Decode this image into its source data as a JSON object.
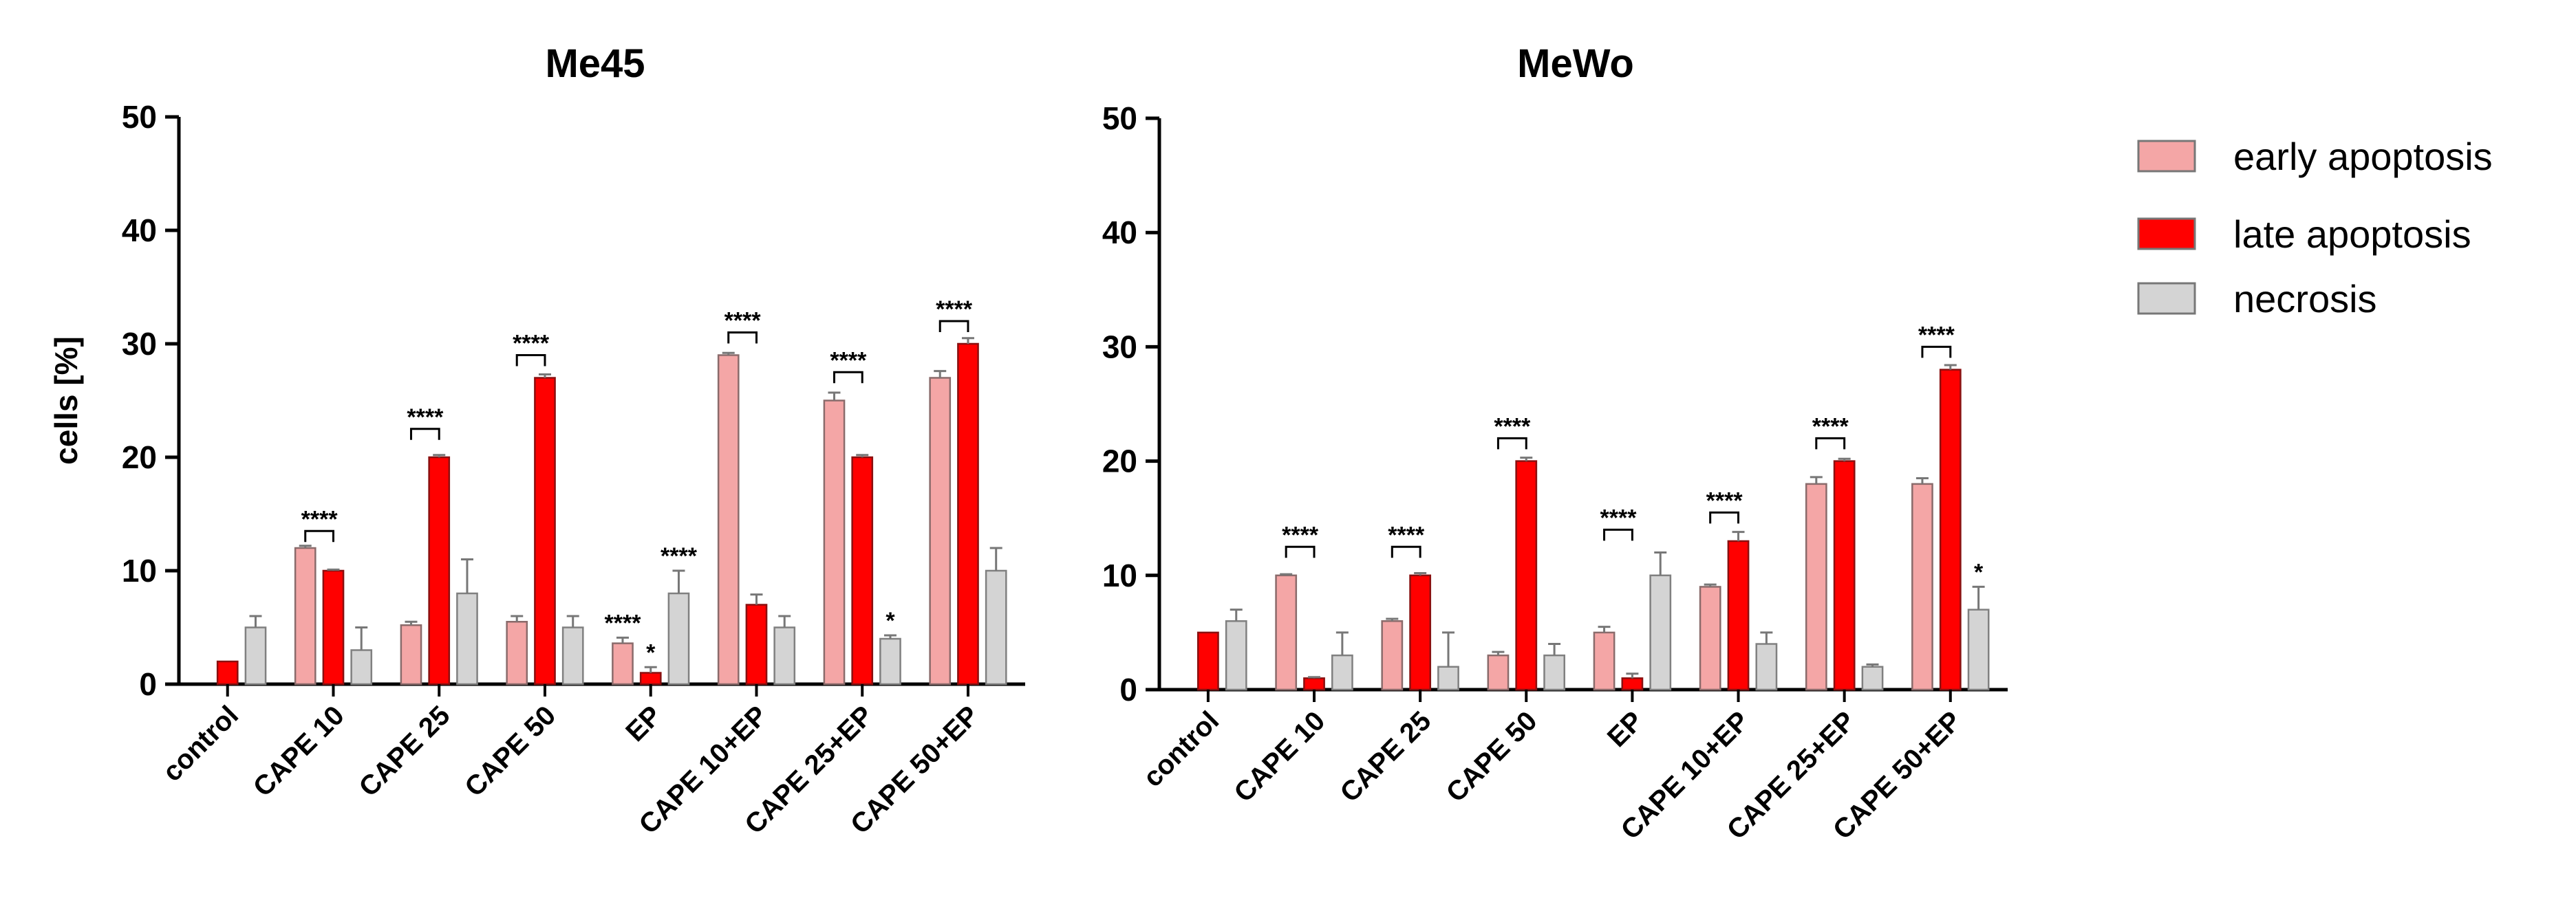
{
  "legend": {
    "items": [
      {
        "label": "early apoptosis",
        "color": "#f4a6a6"
      },
      {
        "label": "late apoptosis",
        "color": "#ff0000"
      },
      {
        "label": "necrosis",
        "color": "#d4d4d4"
      }
    ]
  },
  "chart_data": [
    {
      "type": "bar",
      "title": "Me45",
      "xlabel": "",
      "ylabel": "cells [%]",
      "ylim": [
        0,
        50
      ],
      "yticks": [
        "0",
        "10",
        "20",
        "30",
        "40",
        "50"
      ],
      "categories": [
        "control",
        "CAPE 10",
        "CAPE 25",
        "CAPE 50",
        "EP",
        "CAPE 10+EP",
        "CAPE 25+EP",
        "CAPE 50+EP"
      ],
      "series": [
        {
          "name": "early apoptosis",
          "values": [
            0,
            12,
            5.2,
            5.5,
            3.6,
            29,
            25,
            27
          ],
          "errors": [
            0,
            0.2,
            0.3,
            0.5,
            0.5,
            0.2,
            0.7,
            0.6
          ]
        },
        {
          "name": "late apoptosis",
          "values": [
            2,
            10,
            20,
            27,
            1,
            7,
            20,
            30
          ],
          "errors": [
            0,
            0.1,
            0.2,
            0.3,
            0.5,
            0.9,
            0.2,
            0.5
          ]
        },
        {
          "name": "necrosis",
          "values": [
            5,
            3,
            8,
            5,
            8,
            5,
            4,
            10
          ],
          "errors": [
            1,
            2,
            3,
            1,
            2,
            1,
            0.3,
            2
          ]
        }
      ],
      "significance": [
        {
          "category_index": 1,
          "label": "****",
          "type": "bracket",
          "y": 13.5
        },
        {
          "category_index": 2,
          "label": "****",
          "type": "bracket",
          "y": 22.5
        },
        {
          "category_index": 3,
          "label": "****",
          "type": "bracket",
          "y": 29
        },
        {
          "category_index": 4,
          "label": "****",
          "type": "bar",
          "series_index": 0
        },
        {
          "category_index": 4,
          "label": "*",
          "type": "bar",
          "series_index": 1
        },
        {
          "category_index": 4,
          "label": "****",
          "type": "bar",
          "series_index": 2
        },
        {
          "category_index": 5,
          "label": "****",
          "type": "bracket",
          "y": 31
        },
        {
          "category_index": 6,
          "label": "****",
          "type": "bracket",
          "y": 27.5
        },
        {
          "category_index": 6,
          "label": "*",
          "type": "bar",
          "series_index": 2
        },
        {
          "category_index": 7,
          "label": "****",
          "type": "bracket",
          "y": 32
        }
      ]
    },
    {
      "type": "bar",
      "title": "MeWo",
      "xlabel": "",
      "ylabel": "",
      "ylim": [
        0,
        50
      ],
      "yticks": [
        "0",
        "10",
        "20",
        "30",
        "40",
        "50"
      ],
      "categories": [
        "control",
        "CAPE 10",
        "CAPE 25",
        "CAPE 50",
        "EP",
        "CAPE 10+EP",
        "CAPE 25+EP",
        "CAPE 50+EP"
      ],
      "series": [
        {
          "name": "early apoptosis",
          "values": [
            0,
            10,
            6,
            3,
            5,
            9,
            18,
            18
          ],
          "errors": [
            0,
            0.1,
            0.2,
            0.3,
            0.5,
            0.2,
            0.6,
            0.5
          ]
        },
        {
          "name": "late apoptosis",
          "values": [
            5,
            1,
            10,
            20,
            1,
            13,
            20,
            28
          ],
          "errors": [
            0,
            0.1,
            0.2,
            0.3,
            0.4,
            0.8,
            0.2,
            0.4
          ]
        },
        {
          "name": "necrosis",
          "values": [
            6,
            3,
            2,
            3,
            10,
            4,
            2,
            7
          ],
          "errors": [
            1,
            2,
            3,
            1,
            2,
            1,
            0.2,
            2
          ]
        }
      ],
      "significance": [
        {
          "category_index": 1,
          "label": "****",
          "type": "bracket",
          "y": 12.5
        },
        {
          "category_index": 2,
          "label": "****",
          "type": "bracket",
          "y": 12.5
        },
        {
          "category_index": 3,
          "label": "****",
          "type": "bracket",
          "y": 22
        },
        {
          "category_index": 4,
          "label": "****",
          "type": "bracket",
          "y": 14
        },
        {
          "category_index": 5,
          "label": "****",
          "type": "bracket",
          "y": 15.5
        },
        {
          "category_index": 6,
          "label": "****",
          "type": "bracket",
          "y": 22
        },
        {
          "category_index": 7,
          "label": "****",
          "type": "bracket",
          "y": 30
        },
        {
          "category_index": 7,
          "label": "*",
          "type": "bar",
          "series_index": 2
        }
      ]
    }
  ]
}
